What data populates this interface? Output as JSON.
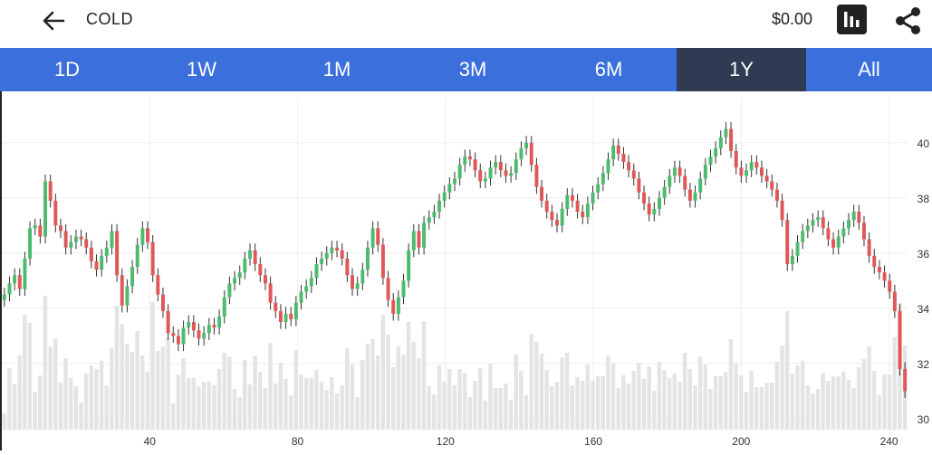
{
  "header": {
    "ticker": "COLD",
    "price": "$0.00",
    "back_icon": "arrow-left-icon",
    "chart_icon": "bar-chart-icon",
    "share_icon": "share-icon"
  },
  "tabs": [
    {
      "label": "1D",
      "active": false
    },
    {
      "label": "1W",
      "active": false
    },
    {
      "label": "1M",
      "active": false
    },
    {
      "label": "3M",
      "active": false
    },
    {
      "label": "6M",
      "active": false
    },
    {
      "label": "1Y",
      "active": true
    },
    {
      "label": "All",
      "active": false
    }
  ],
  "colors": {
    "tab_bar": "#3a6fdc",
    "tab_active": "#2f3b52",
    "up": "#4cbb70",
    "down": "#e05757",
    "volume": "#e4e4e4",
    "grid": "#eeeeee"
  },
  "chart_data": {
    "type": "candlestick",
    "x_ticks": [
      "40",
      "80",
      "120",
      "160",
      "200",
      "240"
    ],
    "y_ticks": [
      "30",
      "32",
      "34",
      "36",
      "38",
      "40"
    ],
    "xlim": [
      0,
      245
    ],
    "ylim": [
      29.6,
      41.6
    ],
    "grid": true,
    "closes": [
      34.5,
      34.9,
      35.2,
      34.7,
      35.8,
      36.9,
      37.0,
      36.6,
      38.6,
      37.9,
      37.0,
      36.8,
      36.2,
      36.4,
      36.6,
      36.5,
      36.2,
      35.7,
      35.4,
      35.9,
      36.2,
      36.8,
      35.2,
      34.1,
      34.8,
      35.5,
      36.3,
      36.9,
      36.4,
      35.2,
      34.5,
      33.9,
      33.1,
      33.0,
      32.7,
      33.3,
      33.5,
      33.2,
      32.9,
      33.1,
      33.4,
      33.3,
      33.7,
      34.4,
      34.9,
      35.1,
      35.3,
      35.8,
      36.1,
      35.6,
      35.2,
      34.9,
      34.2,
      33.9,
      33.5,
      33.8,
      33.6,
      34.2,
      34.6,
      34.8,
      35.1,
      35.6,
      35.8,
      36.0,
      36.2,
      36.1,
      35.8,
      35.2,
      34.7,
      34.9,
      35.4,
      36.2,
      36.9,
      36.3,
      35.1,
      34.3,
      33.8,
      34.4,
      35.0,
      36.1,
      36.8,
      36.2,
      37.1,
      37.3,
      37.5,
      37.9,
      38.2,
      38.5,
      38.7,
      39.2,
      39.5,
      39.4,
      39.0,
      38.6,
      38.7,
      39.1,
      39.3,
      39.0,
      38.8,
      38.9,
      39.4,
      39.8,
      40.0,
      39.2,
      38.4,
      37.9,
      37.5,
      37.2,
      37.0,
      37.6,
      38.1,
      37.9,
      37.5,
      37.3,
      37.8,
      38.2,
      38.5,
      38.9,
      39.4,
      39.9,
      39.6,
      39.3,
      39.0,
      38.7,
      38.2,
      37.8,
      37.4,
      37.6,
      38.0,
      38.4,
      38.8,
      39.1,
      38.8,
      38.3,
      37.9,
      38.2,
      38.7,
      39.2,
      39.5,
      39.8,
      40.2,
      40.5,
      39.7,
      39.1,
      38.8,
      39.0,
      39.3,
      39.1,
      38.8,
      38.6,
      38.3,
      37.9,
      37.2,
      35.6,
      35.9,
      36.4,
      36.8,
      37.0,
      37.2,
      37.3,
      36.9,
      36.5,
      36.2,
      36.6,
      36.9,
      37.2,
      37.5,
      37.1,
      36.5,
      35.9,
      35.5,
      35.3,
      35.0,
      34.6,
      33.9,
      31.8,
      31.0
    ],
    "series": [
      {
        "values": [
          34.5,
          34.9,
          35.2,
          34.7,
          35.8,
          36.9,
          37.0,
          36.6,
          38.6,
          37.9,
          37.0,
          36.8,
          36.2,
          36.4,
          36.6,
          36.5,
          36.2,
          35.7,
          35.4,
          35.9,
          36.2,
          36.8,
          35.2,
          34.1,
          34.8,
          35.5,
          36.3,
          36.9,
          36.4,
          35.2,
          34.5,
          33.9,
          33.1,
          33.0,
          32.7,
          33.3,
          33.5,
          33.2,
          32.9,
          33.1,
          33.4,
          33.3,
          33.7,
          34.4,
          34.9,
          35.1,
          35.3,
          35.8,
          36.1,
          35.6,
          35.2,
          34.9,
          34.2,
          33.9,
          33.5,
          33.8,
          33.6,
          34.2,
          34.6,
          34.8,
          35.1,
          35.6,
          35.8,
          36.0,
          36.2,
          36.1,
          35.8,
          35.2,
          34.7,
          34.9,
          35.4,
          36.2,
          36.9,
          36.3,
          35.1,
          34.3,
          33.8,
          34.4,
          35.0,
          36.1,
          36.8,
          36.2,
          37.1,
          37.3,
          37.5,
          37.9,
          38.2,
          38.5,
          38.7,
          39.2,
          39.5,
          39.4,
          39.0,
          38.6,
          38.7,
          39.1,
          39.3,
          39.0,
          38.8,
          38.9,
          39.4,
          39.8,
          40.0,
          39.2,
          38.4,
          37.9,
          37.5,
          37.2,
          37.0,
          37.6,
          38.1,
          37.9,
          37.5,
          37.3,
          37.8,
          38.2,
          38.5,
          38.9,
          39.4,
          39.9,
          39.6,
          39.3,
          39.0,
          38.7,
          38.2,
          37.8,
          37.4,
          37.6,
          38.0,
          38.4,
          38.8,
          39.1,
          38.8,
          38.3,
          37.9,
          38.2,
          38.7,
          39.2,
          39.5,
          39.8,
          40.2,
          40.5,
          39.7,
          39.1,
          38.8,
          39.0,
          39.3,
          39.1,
          38.8,
          38.6,
          38.3,
          37.9,
          37.2,
          35.6,
          35.9,
          36.4,
          36.8,
          37.0,
          37.2,
          37.3,
          36.9,
          36.5,
          36.2,
          36.6,
          36.9,
          37.2,
          37.5,
          37.1,
          36.5,
          35.9,
          35.5,
          35.3,
          35.0,
          34.6,
          33.9,
          31.8,
          31.0
        ]
      }
    ]
  }
}
